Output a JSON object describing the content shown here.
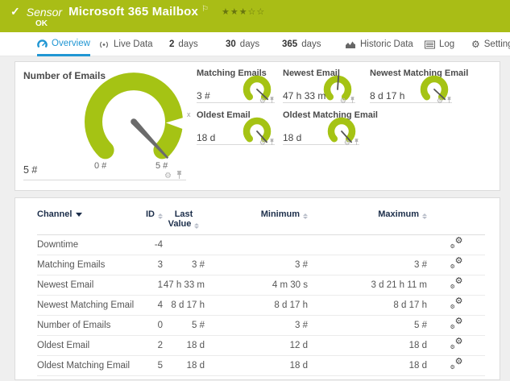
{
  "icons": {
    "check": "✓",
    "gear": "⚙",
    "flag": "⚐"
  },
  "header": {
    "kind": "Sensor",
    "title": "Microsoft 365 Mailbox",
    "status": "OK",
    "stars": "★★★☆☆"
  },
  "tabs": [
    {
      "label": "Overview"
    },
    {
      "label": "Live Data"
    },
    {
      "strong": "2",
      "label": "days"
    },
    {
      "strong": "30",
      "label": "days"
    },
    {
      "strong": "365",
      "label": "days"
    },
    {
      "label": "Historic Data"
    },
    {
      "label": "Log"
    },
    {
      "label": "Settings"
    }
  ],
  "overview": {
    "main_gauge": {
      "title": "Number of Emails",
      "value": "5 #",
      "min_label": "0 #",
      "max_label": "5 #",
      "needle_deg": 137,
      "marker_label": "x"
    },
    "small_gauges": [
      {
        "title": "Matching Emails",
        "value": "3 #",
        "needle_deg": 133
      },
      {
        "title": "Newest Email",
        "value": "47 h 33 m",
        "needle_deg": 4
      },
      {
        "title": "Newest Matching Email",
        "value": "8 d 17 h",
        "needle_deg": 133
      },
      {
        "title": "Oldest Email",
        "value": "18 d",
        "needle_deg": 138
      },
      {
        "title": "Oldest Matching Email",
        "value": "18 d",
        "needle_deg": 138
      }
    ]
  },
  "table": {
    "headers": {
      "channel": "Channel",
      "id": "ID",
      "last_value": "Last Value",
      "minimum": "Minimum",
      "maximum": "Maximum"
    },
    "rows": [
      {
        "channel": "Downtime",
        "id": "-4",
        "last": "",
        "min": "",
        "max": ""
      },
      {
        "channel": "Matching Emails",
        "id": "3",
        "last": "3 #",
        "min": "3 #",
        "max": "3 #"
      },
      {
        "channel": "Newest Email",
        "id": "1",
        "last": "47 h 33 m",
        "min": "4 m 30 s",
        "max": "3 d 21 h 11 m"
      },
      {
        "channel": "Newest Matching Email",
        "id": "4",
        "last": "8 d 17 h",
        "min": "8 d 17 h",
        "max": "8 d 17 h"
      },
      {
        "channel": "Number of Emails",
        "id": "0",
        "last": "5 #",
        "min": "3 #",
        "max": "5 #"
      },
      {
        "channel": "Oldest Email",
        "id": "2",
        "last": "18 d",
        "min": "12 d",
        "max": "18 d"
      },
      {
        "channel": "Oldest Matching Email",
        "id": "5",
        "last": "18 d",
        "min": "18 d",
        "max": "18 d"
      }
    ]
  },
  "colors": {
    "status_green": "#a9bd16",
    "gauge_green": "#a5c314",
    "active_blue": "#2096d3",
    "header_navy": "#1c2e4a"
  }
}
